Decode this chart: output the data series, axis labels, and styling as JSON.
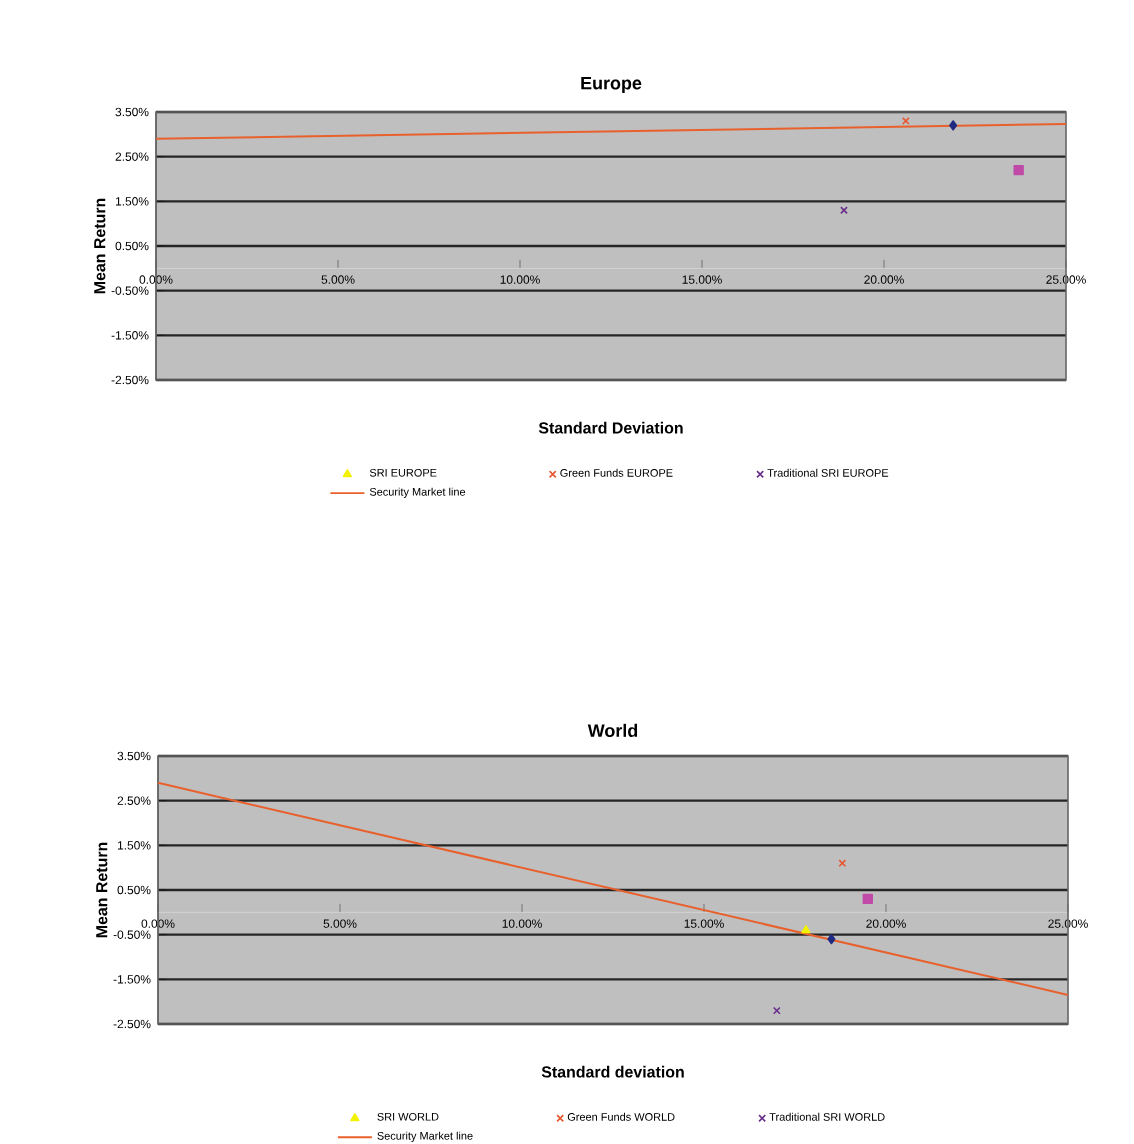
{
  "chart_data": [
    {
      "type": "scatter",
      "title": "Europe",
      "xlabel": "Standard Deviation",
      "ylabel": "Mean Return",
      "xlim": [
        0,
        25
      ],
      "ylim": [
        -2.5,
        3.5
      ],
      "xticks": [
        {
          "value": 0,
          "label": "0.00%"
        },
        {
          "value": 5,
          "label": "5.00%"
        },
        {
          "value": 10,
          "label": "10.00%"
        },
        {
          "value": 15,
          "label": "15.00%"
        },
        {
          "value": 20,
          "label": "20.00%"
        },
        {
          "value": 25,
          "label": "25.00%"
        }
      ],
      "yticks": [
        {
          "value": -2.5,
          "label": "-2.50%"
        },
        {
          "value": -1.5,
          "label": "-1.50%"
        },
        {
          "value": -0.5,
          "label": "-0.50%"
        },
        {
          "value": 0.5,
          "label": "0.50%"
        },
        {
          "value": 1.5,
          "label": "1.50%"
        },
        {
          "value": 2.5,
          "label": "2.50%"
        },
        {
          "value": 3.5,
          "label": "3.50%"
        }
      ],
      "grid": "y",
      "legend": "bottom",
      "series": [
        {
          "color": "#1f2a80",
          "marker": "diamond",
          "x": [
            21.9
          ],
          "values": [
            3.2
          ]
        },
        {
          "color": "#c04aa8",
          "marker": "square",
          "x": [
            23.7
          ],
          "values": [
            2.2
          ]
        },
        {
          "name": "SRI  EUROPE",
          "color": "#f2f200",
          "marker": "triangle",
          "values": [
            null
          ]
        },
        {
          "name": "Green Funds EUROPE",
          "color": "#e8552e",
          "marker": "cross",
          "x": [
            20.6
          ],
          "values": [
            3.3
          ]
        },
        {
          "name": "Traditional SRI EUROPE",
          "color": "#6a2e8a",
          "marker": "cross",
          "x": [
            18.9
          ],
          "values": [
            1.3
          ]
        },
        {
          "name": "Security Market line",
          "type": "line",
          "color": "#e8602c",
          "marker": "none",
          "line_style": "solid",
          "x": [
            0,
            25
          ],
          "values": [
            2.9,
            3.23
          ]
        }
      ]
    },
    {
      "type": "scatter",
      "title": "World",
      "xlabel": "Standard deviation",
      "ylabel": "Mean Return",
      "xlim": [
        0,
        25
      ],
      "ylim": [
        -2.5,
        3.5
      ],
      "xticks": [
        {
          "value": 0,
          "label": "0.00%"
        },
        {
          "value": 5,
          "label": "5.00%"
        },
        {
          "value": 10,
          "label": "10.00%"
        },
        {
          "value": 15,
          "label": "15.00%"
        },
        {
          "value": 20,
          "label": "20.00%"
        },
        {
          "value": 25,
          "label": "25.00%"
        }
      ],
      "yticks": [
        {
          "value": -2.5,
          "label": "-2.50%"
        },
        {
          "value": -1.5,
          "label": "-1.50%"
        },
        {
          "value": -0.5,
          "label": "-0.50%"
        },
        {
          "value": 0.5,
          "label": "0.50%"
        },
        {
          "value": 1.5,
          "label": "1.50%"
        },
        {
          "value": 2.5,
          "label": "2.50%"
        },
        {
          "value": 3.5,
          "label": "3.50%"
        }
      ],
      "grid": "y",
      "legend": "bottom",
      "series": [
        {
          "color": "#1f2a80",
          "marker": "diamond",
          "x": [
            18.5
          ],
          "values": [
            -0.6
          ]
        },
        {
          "color": "#c04aa8",
          "marker": "square",
          "x": [
            19.5
          ],
          "values": [
            0.3
          ]
        },
        {
          "name": "SRI WORLD",
          "color": "#f2f200",
          "marker": "triangle",
          "x": [
            17.8
          ],
          "values": [
            -0.4
          ]
        },
        {
          "name": "Green Funds WORLD",
          "color": "#e8552e",
          "marker": "cross",
          "x": [
            18.8
          ],
          "values": [
            1.1
          ]
        },
        {
          "name": "Traditional SRI WORLD",
          "color": "#6a2e8a",
          "marker": "cross",
          "x": [
            17.0
          ],
          "values": [
            -2.2
          ]
        },
        {
          "name": "Security Market line",
          "type": "line",
          "color": "#e8602c",
          "marker": "none",
          "line_style": "solid",
          "x": [
            0,
            25
          ],
          "values": [
            2.9,
            -1.85
          ]
        }
      ]
    }
  ]
}
